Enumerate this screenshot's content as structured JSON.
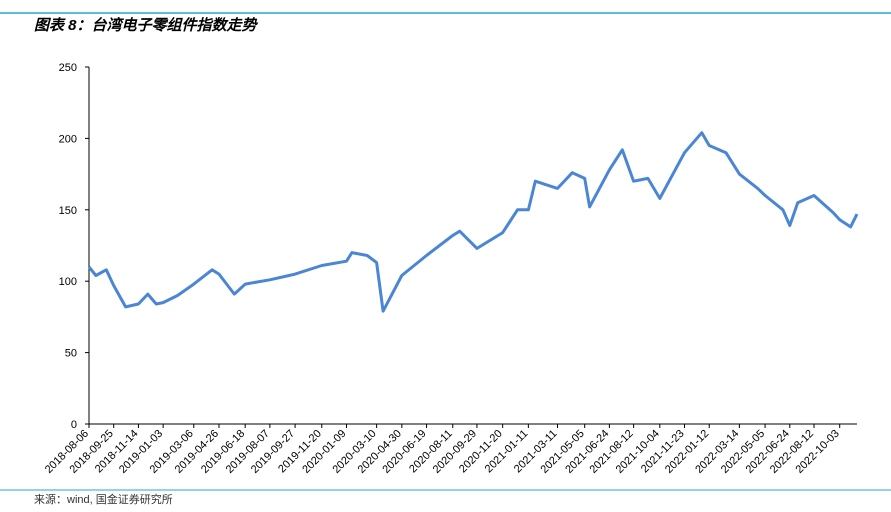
{
  "chart_data": {
    "type": "line",
    "title": "图表 8：台湾电子零组件指数走势",
    "source": "来源：wind, 国金证券研究所",
    "x": [
      "2018-08-06",
      "2018-08-20",
      "2018-09-10",
      "2018-09-25",
      "2018-10-19",
      "2018-11-14",
      "2018-12-03",
      "2018-12-20",
      "2019-01-03",
      "2019-02-01",
      "2019-03-06",
      "2019-04-12",
      "2019-04-26",
      "2019-05-27",
      "2019-06-18",
      "2019-08-07",
      "2019-09-27",
      "2019-11-20",
      "2020-01-09",
      "2020-01-20",
      "2020-02-20",
      "2020-03-10",
      "2020-03-23",
      "2020-04-30",
      "2020-06-19",
      "2020-08-11",
      "2020-08-25",
      "2020-09-29",
      "2020-11-20",
      "2020-12-20",
      "2021-01-11",
      "2021-01-25",
      "2021-03-11",
      "2021-04-10",
      "2021-05-05",
      "2021-05-15",
      "2021-06-24",
      "2021-07-20",
      "2021-08-12",
      "2021-09-10",
      "2021-10-04",
      "2021-11-23",
      "2021-12-28",
      "2022-01-12",
      "2022-02-15",
      "2022-03-14",
      "2022-04-20",
      "2022-05-05",
      "2022-06-10",
      "2022-06-24",
      "2022-07-10",
      "2022-08-12",
      "2022-09-20",
      "2022-10-03",
      "2022-10-25",
      "2022-11-07"
    ],
    "series": [
      {
        "name": "台湾电子零组件指数",
        "color": "#4a86d4",
        "values": [
          110,
          104,
          108,
          97,
          82,
          84,
          91,
          84,
          85,
          90,
          98,
          108,
          105,
          91,
          98,
          101,
          105,
          111,
          114,
          120,
          118,
          113,
          79,
          104,
          118,
          132,
          135,
          123,
          134,
          150,
          150,
          170,
          165,
          176,
          172,
          152,
          178,
          192,
          170,
          172,
          158,
          190,
          204,
          195,
          190,
          175,
          165,
          160,
          150,
          139,
          155,
          160,
          148,
          143,
          138,
          147
        ]
      }
    ],
    "xlim": [
      "2018-08-06",
      "2022-11-07"
    ],
    "xticks": [
      "2018-08-06",
      "2018-09-25",
      "2018-11-14",
      "2019-01-03",
      "2019-03-06",
      "2019-04-26",
      "2019-06-18",
      "2019-08-07",
      "2019-09-27",
      "2019-11-20",
      "2020-01-09",
      "2020-03-10",
      "2020-04-30",
      "2020-06-19",
      "2020-08-11",
      "2020-09-29",
      "2020-11-20",
      "2021-01-11",
      "2021-03-11",
      "2021-05-05",
      "2021-06-24",
      "2021-08-12",
      "2021-10-04",
      "2021-11-23",
      "2022-01-12",
      "2022-03-14",
      "2022-05-05",
      "2022-06-24",
      "2022-08-12",
      "2022-10-03"
    ],
    "ylim": [
      0,
      250
    ],
    "yticks": [
      0,
      50,
      100,
      150,
      200,
      250
    ],
    "grid": false
  }
}
